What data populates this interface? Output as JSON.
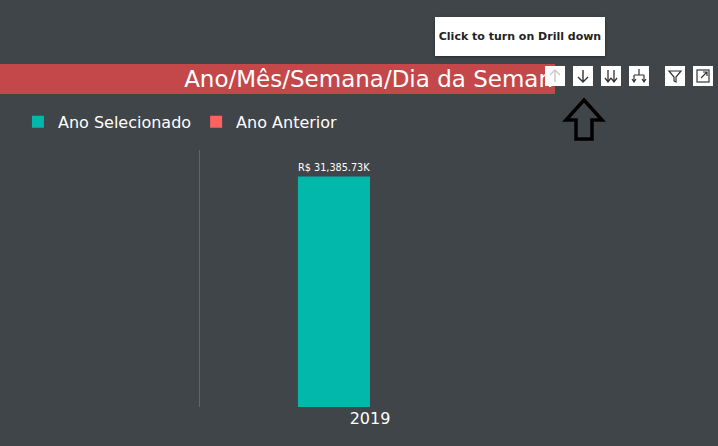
{
  "chart_data": {
    "type": "bar",
    "title": "Ano/Mês/Semana/Dia da Seman",
    "categories": [
      "2019"
    ],
    "series": [
      {
        "name": "Ano Selecionado",
        "color": "#01B8AA",
        "values": [
          31385.73
        ],
        "value_labels": [
          "R$ 31,385.73K"
        ]
      },
      {
        "name": "Ano Anterior",
        "color": "#FD625E",
        "values": [
          null
        ],
        "value_labels": [
          null
        ]
      }
    ],
    "ylim": [
      0,
      35000
    ],
    "data_labels": true,
    "legend": "top-left",
    "tick_labels": "x",
    "annotations": [
      "Click to turn on Drill down"
    ]
  }
}
